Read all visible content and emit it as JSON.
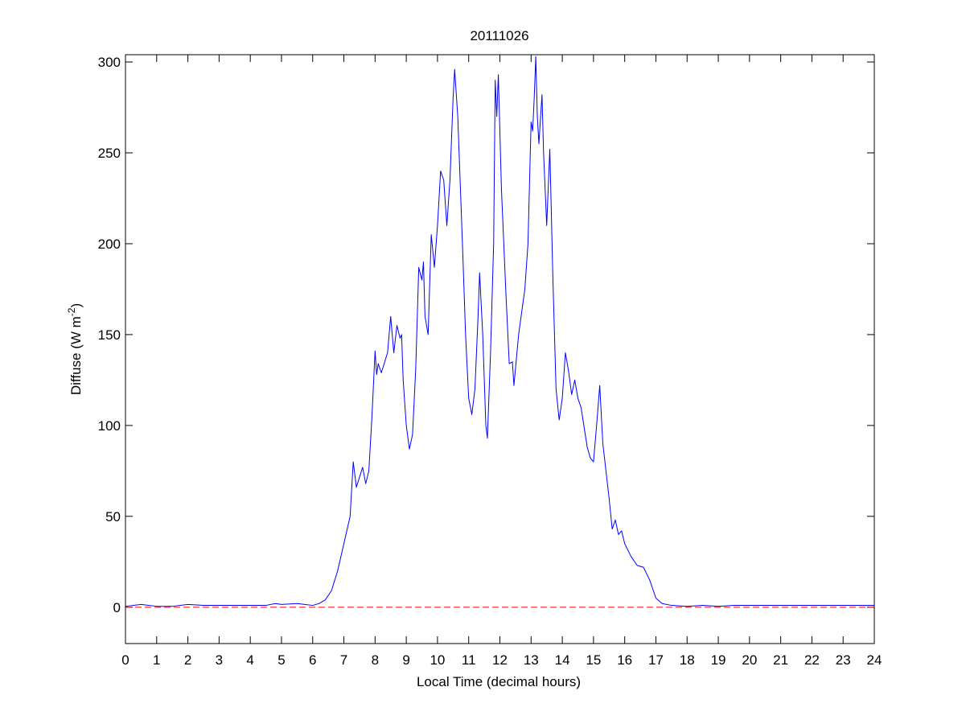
{
  "chart_data": {
    "type": "line",
    "title": "20111026",
    "xlabel": "Local Time (decimal hours)",
    "ylabel_parts": [
      "Diffuse (W m",
      "-2",
      ")"
    ],
    "xlim": [
      0,
      24
    ],
    "ylim": [
      -20,
      304
    ],
    "xticks": [
      0,
      1,
      2,
      3,
      4,
      5,
      6,
      7,
      8,
      9,
      10,
      11,
      12,
      13,
      14,
      15,
      16,
      17,
      18,
      19,
      20,
      21,
      22,
      23,
      24
    ],
    "yticks": [
      0,
      50,
      100,
      150,
      200,
      250,
      300
    ],
    "color": "#0000ff",
    "reference_line": {
      "y": 0,
      "color": "#ff0000",
      "style": "dashed"
    },
    "x": [
      0,
      0.5,
      1,
      1.5,
      2,
      2.5,
      3,
      3.5,
      4,
      4.5,
      4.8,
      5,
      5.5,
      6,
      6.2,
      6.4,
      6.6,
      6.8,
      7.0,
      7.2,
      7.3,
      7.4,
      7.6,
      7.7,
      7.8,
      7.9,
      8.0,
      8.05,
      8.1,
      8.2,
      8.4,
      8.5,
      8.6,
      8.7,
      8.8,
      8.85,
      8.9,
      9.0,
      9.1,
      9.2,
      9.3,
      9.4,
      9.5,
      9.55,
      9.6,
      9.7,
      9.8,
      9.9,
      10.0,
      10.1,
      10.2,
      10.3,
      10.4,
      10.5,
      10.55,
      10.65,
      10.8,
      10.9,
      11.0,
      11.1,
      11.2,
      11.3,
      11.35,
      11.45,
      11.55,
      11.6,
      11.7,
      11.8,
      11.85,
      11.9,
      11.95,
      12.05,
      12.2,
      12.3,
      12.4,
      12.45,
      12.6,
      12.8,
      12.9,
      13.0,
      13.05,
      13.1,
      13.15,
      13.2,
      13.25,
      13.35,
      13.4,
      13.5,
      13.6,
      13.7,
      13.8,
      13.9,
      14.0,
      14.1,
      14.2,
      14.3,
      14.4,
      14.5,
      14.6,
      14.8,
      14.9,
      15.0,
      15.1,
      15.2,
      15.3,
      15.5,
      15.6,
      15.7,
      15.8,
      15.9,
      16.0,
      16.2,
      16.4,
      16.6,
      16.8,
      17.0,
      17.2,
      17.5,
      18,
      18.5,
      19,
      19.5,
      20,
      21,
      22,
      23,
      24
    ],
    "y": [
      0.5,
      1.5,
      0.5,
      0.5,
      1.5,
      1,
      1,
      1,
      1,
      1,
      2,
      1.5,
      2,
      1,
      2,
      4,
      9,
      20,
      35,
      50,
      80,
      66,
      77,
      68,
      75,
      105,
      141,
      128,
      134,
      129,
      140,
      160,
      140,
      155,
      148,
      150,
      125,
      100,
      87,
      95,
      130,
      187,
      180,
      190,
      160,
      150,
      205,
      187,
      210,
      240,
      235,
      210,
      235,
      280,
      296,
      270,
      200,
      150,
      115,
      106,
      120,
      160,
      184,
      150,
      100,
      93,
      140,
      200,
      290,
      270,
      293,
      230,
      170,
      134,
      135,
      122,
      150,
      175,
      200,
      267,
      262,
      280,
      303,
      270,
      255,
      282,
      250,
      210,
      252,
      180,
      120,
      103,
      115,
      140,
      130,
      117,
      125,
      115,
      110,
      88,
      82,
      80,
      100,
      122,
      90,
      60,
      43,
      48,
      40,
      42,
      35,
      28,
      23,
      22,
      15,
      5,
      2,
      1,
      0.5,
      1,
      0.5,
      1,
      1,
      1,
      1,
      1,
      1
    ]
  }
}
